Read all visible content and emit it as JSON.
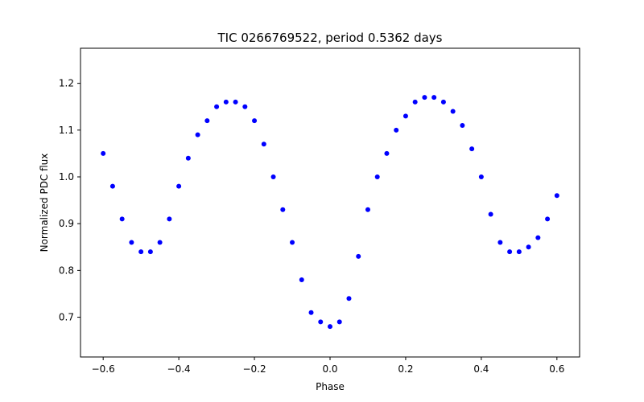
{
  "chart_data": {
    "type": "scatter",
    "title": "TIC 0266769522, period 0.5362 days",
    "xlabel": "Phase",
    "ylabel": "Normalized PDC flux",
    "xlim": [
      -0.66,
      0.66
    ],
    "ylim": [
      0.615,
      1.275
    ],
    "xticks": [
      -0.6,
      -0.4,
      -0.2,
      0.0,
      0.2,
      0.4,
      0.6
    ],
    "xtick_labels": [
      "−0.6",
      "−0.4",
      "−0.2",
      "0.0",
      "0.2",
      "0.4",
      "0.6"
    ],
    "yticks": [
      0.7,
      0.8,
      0.9,
      1.0,
      1.1,
      1.2
    ],
    "ytick_labels": [
      "0.7",
      "0.8",
      "0.9",
      "1.0",
      "1.1",
      "1.2"
    ],
    "grid": false,
    "marker_color": "#0000ff",
    "series": [
      {
        "x": [
          -0.6,
          -0.575,
          -0.55,
          -0.525,
          -0.5,
          -0.475,
          -0.45,
          -0.425,
          -0.4,
          -0.375,
          -0.35,
          -0.325,
          -0.3,
          -0.275,
          -0.25,
          -0.225,
          -0.2,
          -0.175,
          -0.15,
          -0.125,
          -0.1,
          -0.075,
          -0.05,
          -0.025,
          0.0,
          0.025,
          0.05,
          0.075,
          0.1,
          0.125,
          0.15,
          0.175,
          0.2,
          0.225,
          0.25,
          0.275,
          0.3,
          0.325,
          0.35,
          0.375,
          0.4,
          0.425,
          0.45,
          0.475,
          0.5,
          0.525,
          0.55,
          0.575,
          0.6
        ],
        "y": [
          1.05,
          0.98,
          0.91,
          0.86,
          0.84,
          0.84,
          0.86,
          0.91,
          0.98,
          1.04,
          1.09,
          1.12,
          1.15,
          1.16,
          1.16,
          1.15,
          1.12,
          1.07,
          1.0,
          0.93,
          0.86,
          0.78,
          0.71,
          0.69,
          0.68,
          0.69,
          0.74,
          0.83,
          0.93,
          1.0,
          1.05,
          1.1,
          1.13,
          1.16,
          1.17,
          1.17,
          1.16,
          1.14,
          1.11,
          1.06,
          1.0,
          0.92,
          0.86,
          0.84,
          0.84,
          0.85,
          0.87,
          0.91,
          0.96
        ]
      }
    ]
  }
}
